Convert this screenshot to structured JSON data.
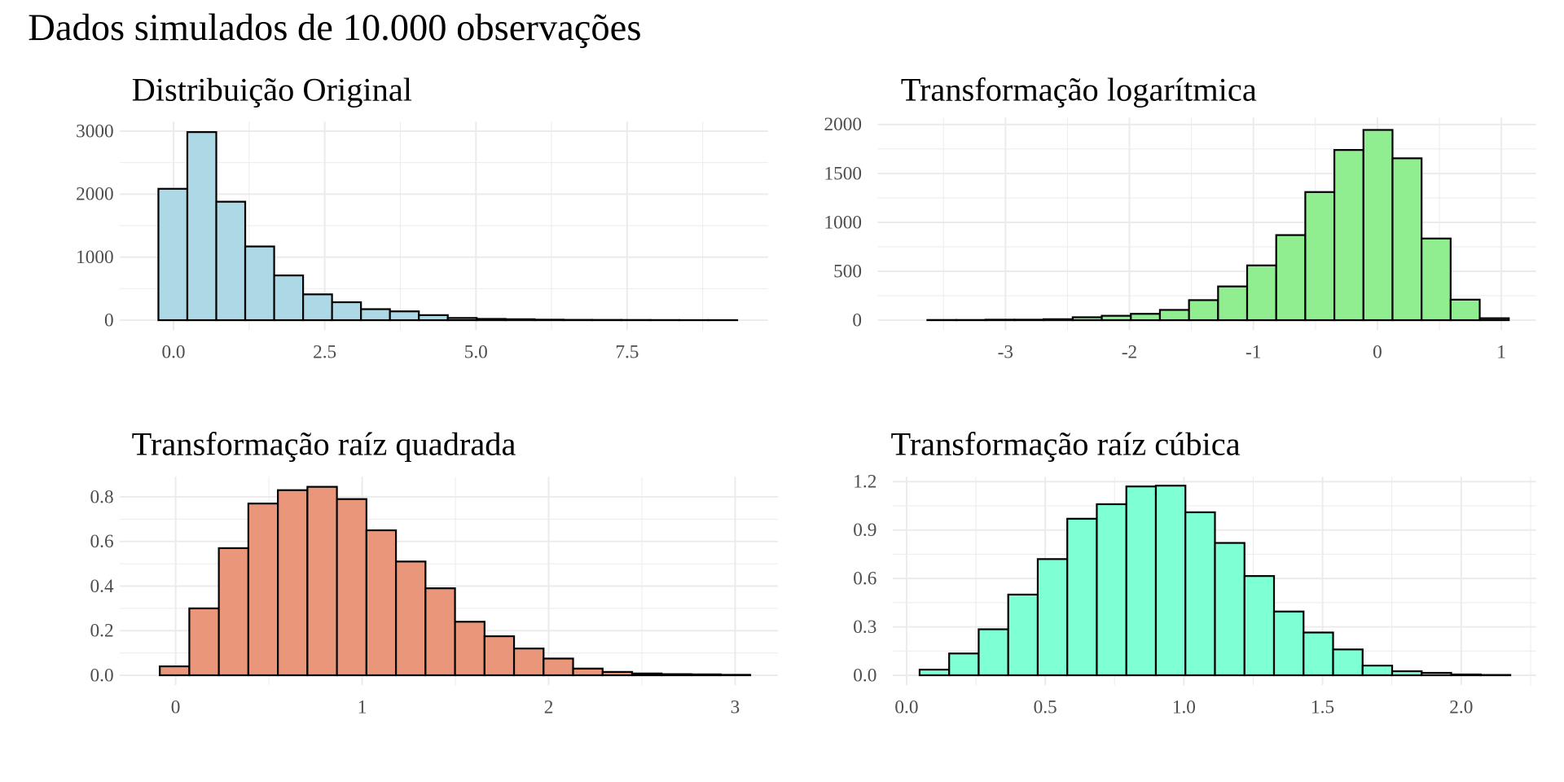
{
  "title": "Dados simulados de 10.000 observações",
  "chart_data": [
    {
      "type": "bar",
      "title": "Distribuição Original",
      "fill": "#ADD8E6",
      "bin_start": -0.25,
      "bin_width": 0.4785,
      "values": [
        2085,
        2985,
        1880,
        1170,
        710,
        410,
        285,
        175,
        140,
        80,
        35,
        20,
        15,
        8,
        5,
        4,
        3,
        2,
        1,
        1
      ],
      "xlim": [
        -0.89,
        9.83
      ],
      "ylim": [
        0,
        3150
      ],
      "xticks": [
        0,
        2.5,
        5,
        7.5
      ],
      "xtick_labels": [
        "0.0",
        "2.5",
        "5.0",
        "7.5"
      ],
      "yticks": [
        0,
        1000,
        2000,
        3000
      ],
      "ytick_labels": [
        "0",
        "1000",
        "2000",
        "3000"
      ],
      "xlabel": "",
      "ylabel": ""
    },
    {
      "type": "bar",
      "title": "Transformação logarítmica",
      "fill": "#90EE90",
      "bin_start": -3.63,
      "bin_width": 0.2345,
      "values": [
        2,
        2,
        5,
        5,
        10,
        30,
        45,
        65,
        105,
        205,
        345,
        560,
        870,
        1310,
        1740,
        1945,
        1655,
        835,
        210,
        20
      ],
      "xlim": [
        -4.03,
        1.28
      ],
      "ylim": [
        0,
        2070
      ],
      "xticks": [
        -3,
        -2,
        -1,
        0,
        1
      ],
      "xtick_labels": [
        "-3",
        "-2",
        "-1",
        "0",
        "1"
      ],
      "yticks": [
        0,
        500,
        1000,
        1500,
        2000
      ],
      "ytick_labels": [
        "0",
        "500",
        "1000",
        "1500",
        "2000"
      ],
      "xlabel": "",
      "ylabel": ""
    },
    {
      "type": "bar",
      "title": "Transformação raíz quadrada",
      "fill": "#E9967A",
      "bin_start": -0.085,
      "bin_width": 0.1583,
      "values": [
        0.04,
        0.3,
        0.57,
        0.77,
        0.83,
        0.845,
        0.79,
        0.65,
        0.51,
        0.39,
        0.24,
        0.175,
        0.12,
        0.075,
        0.03,
        0.015,
        0.008,
        0.005,
        0.004,
        0.002
      ],
      "xlim": [
        -0.3,
        3.23
      ],
      "ylim": [
        0,
        0.89
      ],
      "xticks": [
        0,
        1,
        2,
        3
      ],
      "xtick_labels": [
        "0",
        "1",
        "2",
        "3"
      ],
      "yticks": [
        0,
        0.2,
        0.4,
        0.6,
        0.8
      ],
      "ytick_labels": [
        "0.0",
        "0.2",
        "0.4",
        "0.6",
        "0.8"
      ],
      "xlabel": "",
      "ylabel": ""
    },
    {
      "type": "bar",
      "title": "Transformação raíz cúbica",
      "fill": "#7FFFD4",
      "bin_start": 0.047,
      "bin_width": 0.1065,
      "values": [
        0.035,
        0.135,
        0.285,
        0.5,
        0.72,
        0.97,
        1.06,
        1.17,
        1.175,
        1.01,
        0.82,
        0.615,
        0.395,
        0.265,
        0.16,
        0.06,
        0.025,
        0.015,
        0.005,
        0.002
      ],
      "xlim": [
        -0.05,
        2.27
      ],
      "ylim": [
        0,
        1.23
      ],
      "xticks": [
        0,
        0.5,
        1,
        1.5,
        2
      ],
      "xtick_labels": [
        "0.0",
        "0.5",
        "1.0",
        "1.5",
        "2.0"
      ],
      "yticks": [
        0,
        0.3,
        0.6,
        0.9,
        1.2
      ],
      "ytick_labels": [
        "0.0",
        "0.3",
        "0.6",
        "0.9",
        "1.2"
      ],
      "xlabel": "",
      "ylabel": ""
    }
  ]
}
